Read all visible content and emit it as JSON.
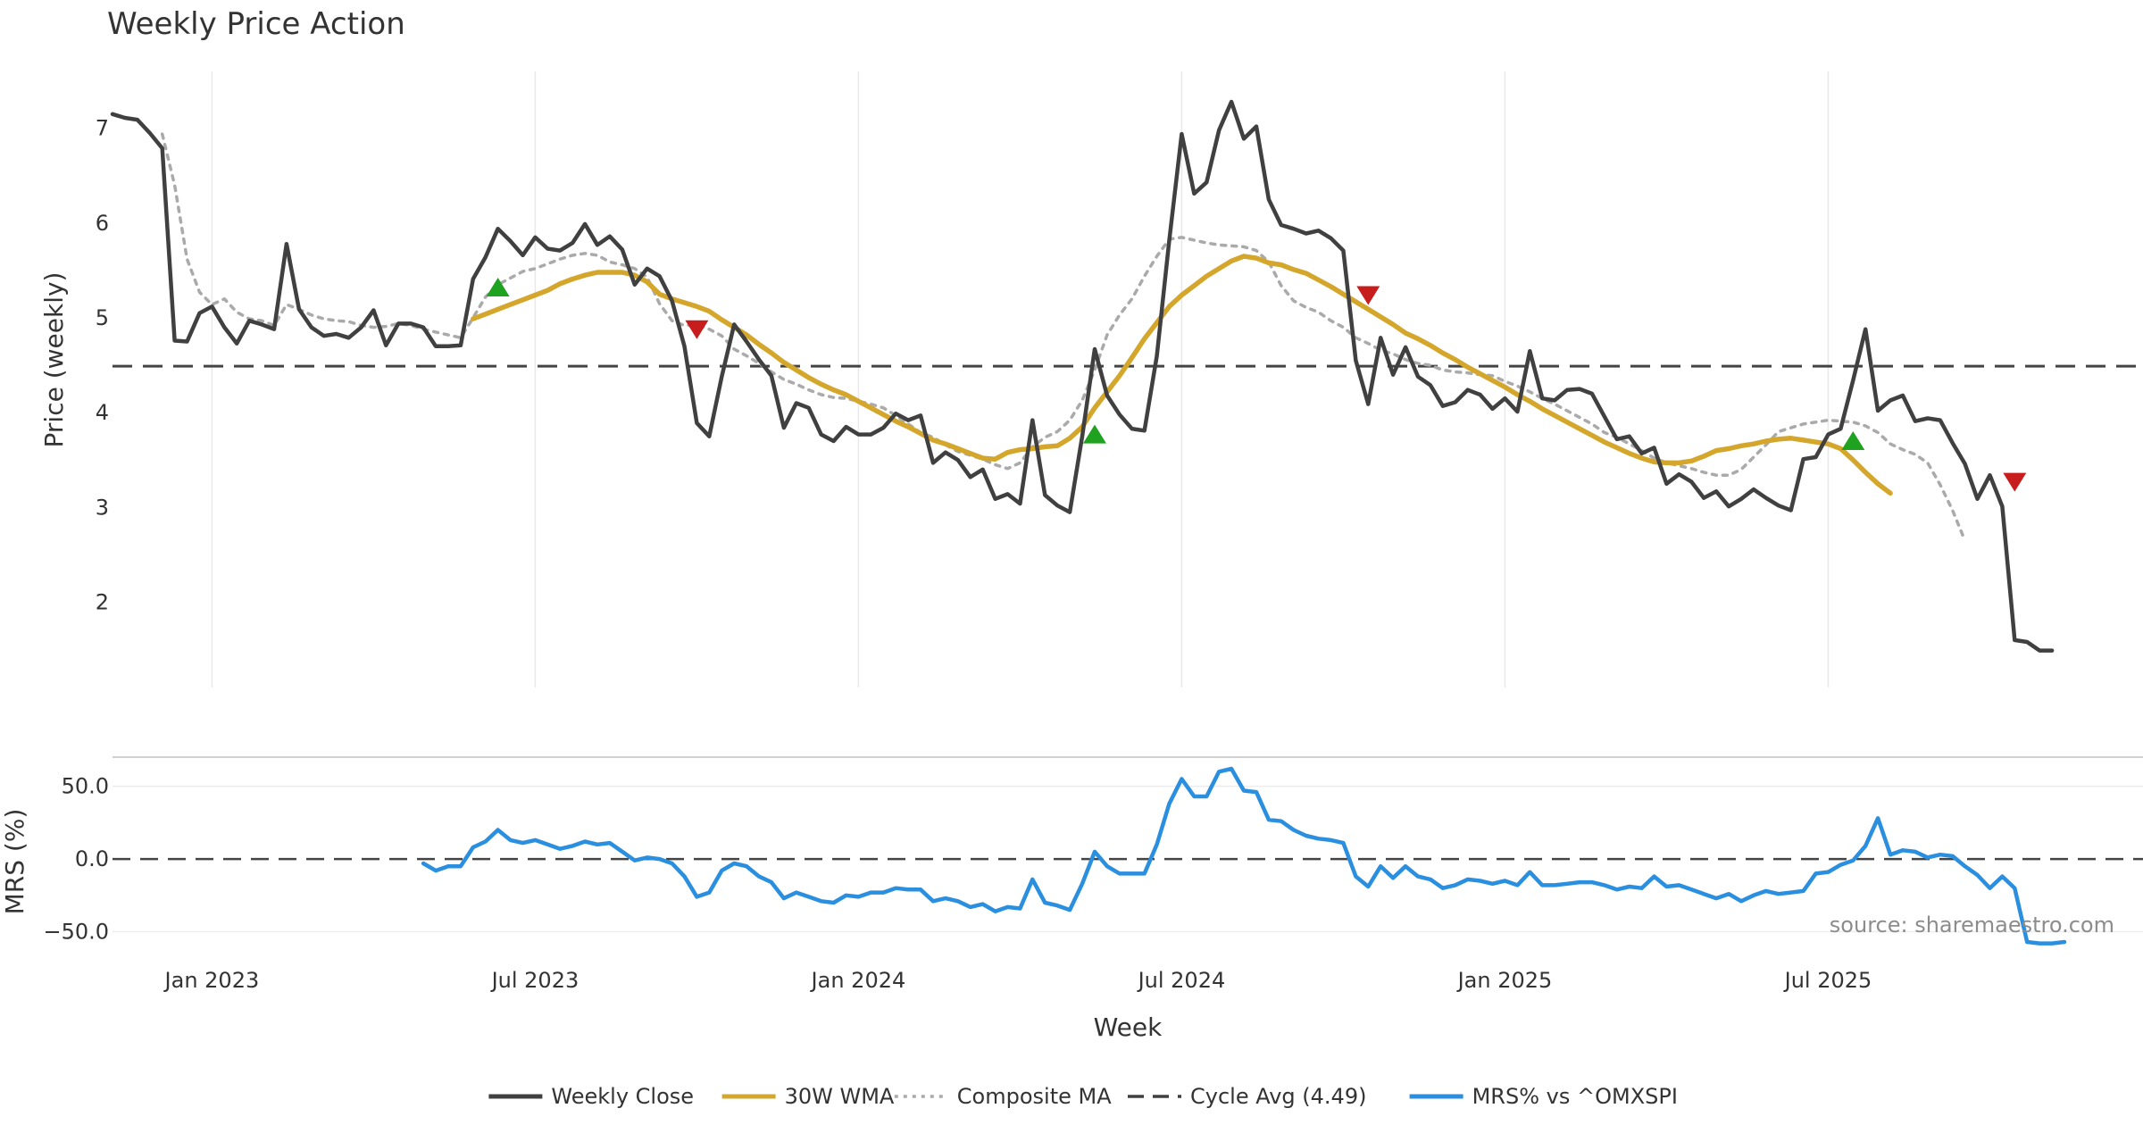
{
  "chart_data": {
    "type": "line",
    "title": "Weekly Price Action",
    "source": "source: sharemaestro.com",
    "xlabel": "Week",
    "x_ticks": [
      {
        "label": "Jan 2023",
        "week": 8
      },
      {
        "label": "Jul 2023",
        "week": 34
      },
      {
        "label": "Jan 2024",
        "week": 60
      },
      {
        "label": "Jul 2024",
        "week": 86
      },
      {
        "label": "Jan 2025",
        "week": 112
      },
      {
        "label": "Jul 2025",
        "week": 138
      }
    ],
    "x_range": [
      0,
      157
    ],
    "price_panel": {
      "ylabel": "Price (weekly)",
      "ylim": [
        1.1,
        7.6
      ],
      "y_ticks": [
        2,
        3,
        4,
        5,
        6,
        7
      ],
      "cycle_avg": 4.49,
      "series": [
        {
          "name": "Weekly Close",
          "color": "#404040",
          "start_week": 0,
          "values": [
            7.15,
            7.11,
            7.09,
            6.95,
            6.79,
            4.76,
            4.75,
            5.05,
            5.12,
            4.9,
            4.73,
            4.97,
            4.93,
            4.88,
            5.78,
            5.09,
            4.9,
            4.81,
            4.83,
            4.79,
            4.9,
            5.08,
            4.71,
            4.94,
            4.94,
            4.9,
            4.7,
            4.7,
            4.71,
            5.41,
            5.64,
            5.94,
            5.81,
            5.66,
            5.85,
            5.73,
            5.71,
            5.79,
            5.99,
            5.77,
            5.86,
            5.72,
            5.35,
            5.52,
            5.44,
            5.18,
            4.7,
            3.89,
            3.75,
            4.38,
            4.93,
            4.75,
            4.56,
            4.39,
            3.84,
            4.1,
            4.05,
            3.77,
            3.7,
            3.85,
            3.77,
            3.77,
            3.84,
            3.99,
            3.92,
            3.97,
            3.47,
            3.58,
            3.5,
            3.32,
            3.4,
            3.09,
            3.14,
            3.04,
            3.92,
            3.13,
            3.02,
            2.95,
            3.75,
            4.67,
            4.18,
            3.98,
            3.83,
            3.81,
            4.6,
            5.82,
            6.94,
            6.31,
            6.43,
            6.98,
            7.28,
            6.89,
            7.02,
            6.25,
            5.98,
            5.94,
            5.89,
            5.92,
            5.84,
            5.71,
            4.55,
            4.09,
            4.79,
            4.4,
            4.69,
            4.38,
            4.29,
            4.07,
            4.11,
            4.24,
            4.19,
            4.04,
            4.15,
            4.01,
            4.65,
            4.15,
            4.13,
            4.24,
            4.25,
            4.2,
            3.96,
            3.72,
            3.75,
            3.57,
            3.63,
            3.25,
            3.35,
            3.27,
            3.1,
            3.17,
            3.01,
            3.09,
            3.19,
            3.1,
            3.02,
            2.97,
            3.51,
            3.53,
            3.77,
            3.83,
            4.34,
            4.88,
            4.02,
            4.13,
            4.18,
            3.91,
            3.94,
            3.92,
            3.68,
            3.46,
            3.09,
            3.34,
            3.01,
            1.6,
            1.58,
            1.49,
            1.49
          ]
        },
        {
          "name": "30W WMA",
          "color": "#d4a72c",
          "start_week": 29,
          "values": [
            4.99,
            5.04,
            5.09,
            5.14,
            5.19,
            5.24,
            5.29,
            5.36,
            5.41,
            5.45,
            5.48,
            5.48,
            5.48,
            5.45,
            5.38,
            5.25,
            5.2,
            5.16,
            5.12,
            5.07,
            4.98,
            4.9,
            4.82,
            4.72,
            4.63,
            4.53,
            4.45,
            4.37,
            4.3,
            4.24,
            4.19,
            4.12,
            4.05,
            3.98,
            3.91,
            3.85,
            3.78,
            3.71,
            3.67,
            3.62,
            3.57,
            3.52,
            3.51,
            3.58,
            3.61,
            3.62,
            3.64,
            3.65,
            3.73,
            3.85,
            4.05,
            4.22,
            4.39,
            4.58,
            4.78,
            4.95,
            5.12,
            5.24,
            5.34,
            5.44,
            5.52,
            5.6,
            5.65,
            5.63,
            5.58,
            5.56,
            5.51,
            5.47,
            5.4,
            5.33,
            5.25,
            5.17,
            5.09,
            5.01,
            4.93,
            4.84,
            4.78,
            4.71,
            4.63,
            4.56,
            4.48,
            4.41,
            4.34,
            4.27,
            4.19,
            4.12,
            4.04,
            3.97,
            3.9,
            3.83,
            3.76,
            3.69,
            3.63,
            3.57,
            3.52,
            3.48,
            3.47,
            3.47,
            3.49,
            3.54,
            3.6,
            3.62,
            3.65,
            3.67,
            3.7,
            3.72,
            3.73,
            3.71,
            3.69,
            3.67,
            3.62,
            3.5,
            3.37,
            3.25,
            3.15
          ]
        },
        {
          "name": "Composite MA",
          "color": "#aaaaaa",
          "start_week": 4,
          "values": [
            6.94,
            6.4,
            5.62,
            5.27,
            5.14,
            5.2,
            5.06,
            4.99,
            4.97,
            4.92,
            5.14,
            5.09,
            5.03,
            4.99,
            4.97,
            4.96,
            4.92,
            4.9,
            4.91,
            4.94,
            4.92,
            4.88,
            4.85,
            4.82,
            4.79,
            5.0,
            5.22,
            5.35,
            5.42,
            5.49,
            5.52,
            5.57,
            5.62,
            5.66,
            5.68,
            5.66,
            5.59,
            5.56,
            5.52,
            5.43,
            5.15,
            4.97,
            4.92,
            4.93,
            4.88,
            4.81,
            4.67,
            4.6,
            4.52,
            4.43,
            4.35,
            4.3,
            4.24,
            4.19,
            4.16,
            4.15,
            4.12,
            4.09,
            4.05,
            3.97,
            3.88,
            3.79,
            3.74,
            3.66,
            3.59,
            3.55,
            3.51,
            3.45,
            3.41,
            3.47,
            3.64,
            3.74,
            3.8,
            3.92,
            4.13,
            4.45,
            4.82,
            5.03,
            5.2,
            5.44,
            5.65,
            5.83,
            5.85,
            5.82,
            5.79,
            5.77,
            5.76,
            5.75,
            5.71,
            5.59,
            5.34,
            5.18,
            5.11,
            5.06,
            4.97,
            4.9,
            4.79,
            4.73,
            4.66,
            4.62,
            4.56,
            4.52,
            4.5,
            4.45,
            4.43,
            4.42,
            4.4,
            4.39,
            4.33,
            4.28,
            4.22,
            4.15,
            4.09,
            4.02,
            3.95,
            3.88,
            3.79,
            3.74,
            3.67,
            3.6,
            3.52,
            3.47,
            3.44,
            3.41,
            3.37,
            3.34,
            3.34,
            3.4,
            3.53,
            3.66,
            3.8,
            3.84,
            3.88,
            3.9,
            3.92,
            3.91,
            3.9,
            3.86,
            3.79,
            3.67,
            3.61,
            3.56,
            3.47,
            3.24,
            2.97,
            2.65
          ]
        }
      ],
      "signals": [
        {
          "type": "buy",
          "week": 31,
          "price": 5.32
        },
        {
          "type": "sell",
          "week": 47,
          "price": 4.88
        },
        {
          "type": "buy",
          "week": 79,
          "price": 3.77
        },
        {
          "type": "sell",
          "week": 101,
          "price": 5.24
        },
        {
          "type": "buy",
          "week": 140,
          "price": 3.7
        },
        {
          "type": "sell",
          "week": 153,
          "price": 3.27
        }
      ]
    },
    "mrs_panel": {
      "ylabel": "MRS (%)",
      "ylim": [
        -65,
        70
      ],
      "y_ticks": [
        {
          "value": 50,
          "label": "50.0"
        },
        {
          "value": 0,
          "label": "0.0"
        },
        {
          "value": -50,
          "label": "−50.0"
        }
      ],
      "zero_line": 0,
      "series": [
        {
          "name": "MRS% vs ^OMXSPI",
          "color": "#2b8fe0",
          "start_week": 25,
          "values": [
            -3,
            -8,
            -5,
            -5,
            8,
            12,
            20,
            13,
            11,
            13,
            10,
            7,
            9,
            12,
            10,
            11,
            5,
            -1,
            1,
            0,
            -3,
            -12,
            -26,
            -23,
            -8,
            -3,
            -5,
            -12,
            -16,
            -27,
            -23,
            -26,
            -29,
            -30,
            -25,
            -26,
            -23,
            -23,
            -20,
            -21,
            -21,
            -29,
            -27,
            -29,
            -33,
            -31,
            -36,
            -33,
            -34,
            -14,
            -30,
            -32,
            -35,
            -17,
            5,
            -5,
            -10,
            -10,
            -10,
            10,
            38,
            55,
            43,
            43,
            60,
            62,
            47,
            46,
            27,
            26,
            20,
            16,
            14,
            13,
            11,
            -12,
            -19,
            -5,
            -13,
            -5,
            -12,
            -14,
            -20,
            -18,
            -14,
            -15,
            -17,
            -15,
            -18,
            -9,
            -18,
            -18,
            -17,
            -16,
            -16,
            -18,
            -21,
            -19,
            -20,
            -12,
            -19,
            -18,
            -21,
            -24,
            -27,
            -24,
            -29,
            -25,
            -22,
            -24,
            -23,
            -22,
            -10,
            -9,
            -4,
            -1,
            9,
            28,
            3,
            6,
            5,
            1,
            3,
            2,
            -5,
            -11,
            -20,
            -12,
            -20,
            -57,
            -58,
            -58,
            -57
          ]
        }
      ]
    },
    "legend": [
      {
        "label": "Weekly Close",
        "color": "#404040",
        "style": "solid"
      },
      {
        "label": "30W WMA",
        "color": "#d4a72c",
        "style": "solid"
      },
      {
        "label": "Composite MA",
        "color": "#aaaaaa",
        "style": "dotted"
      },
      {
        "label": "Cycle Avg (4.49)",
        "color": "#404040",
        "style": "dashed"
      },
      {
        "label": "MRS% vs ^OMXSPI",
        "color": "#2b8fe0",
        "style": "solid"
      }
    ],
    "legend_position": "bottom-center"
  }
}
